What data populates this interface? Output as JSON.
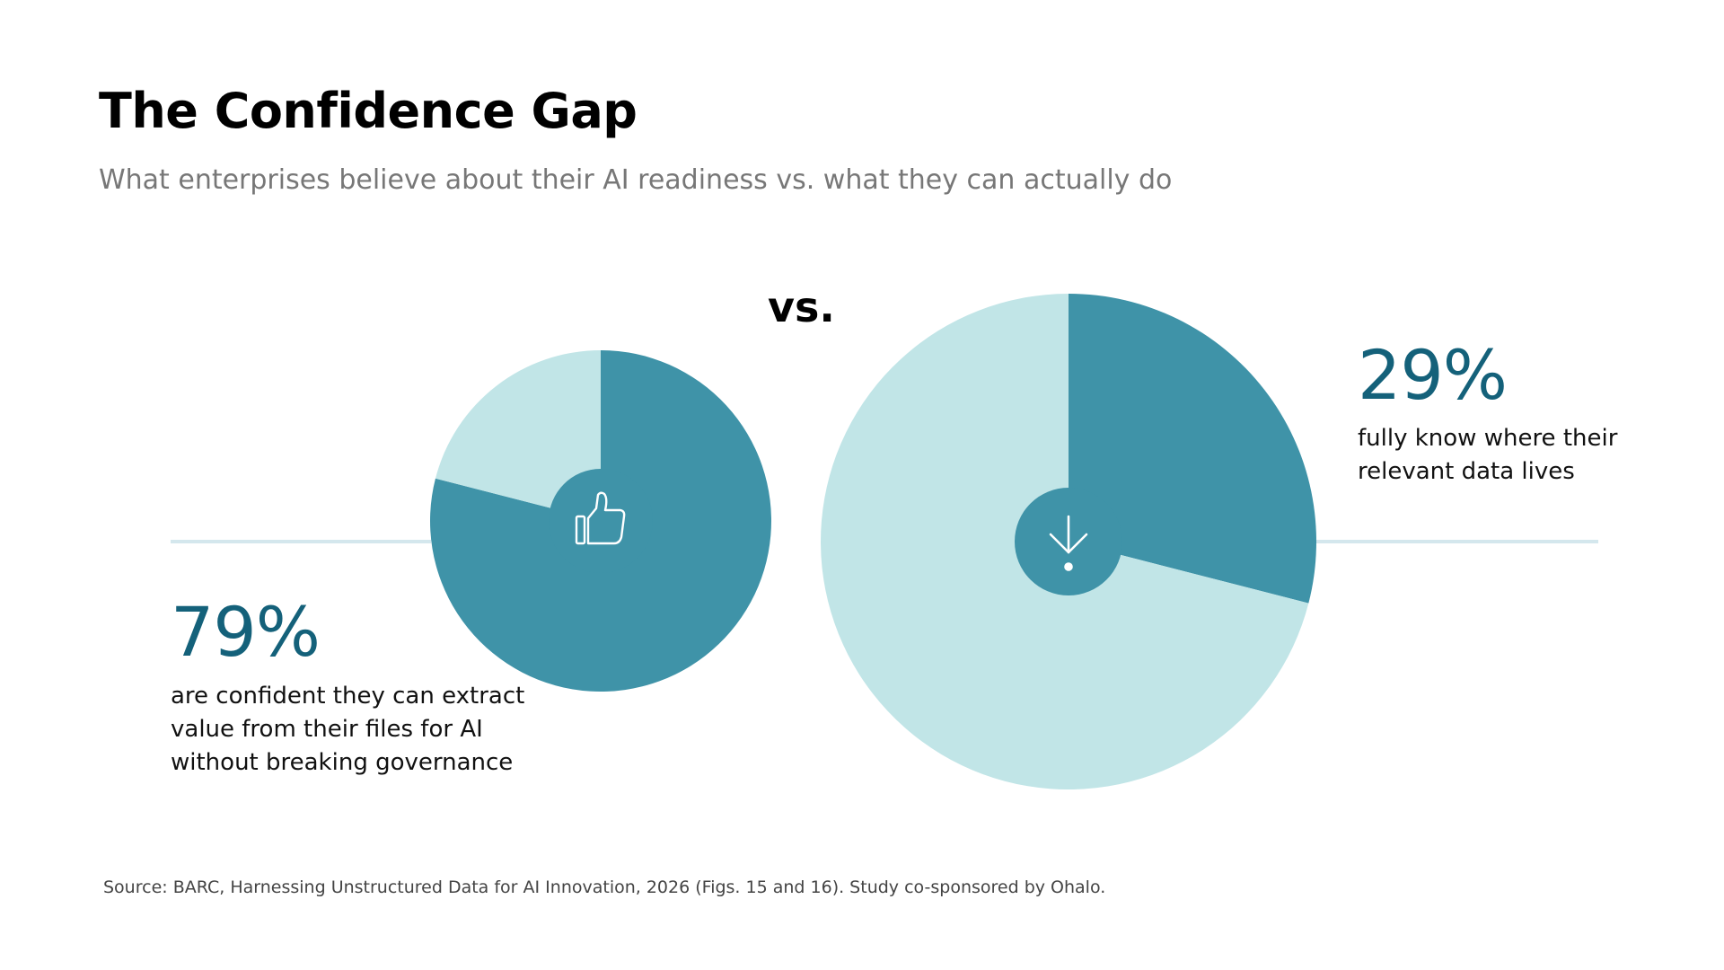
{
  "title": "The Confidence Gap",
  "subtitle": "What enterprises believe about their AI readiness vs. what they can actually do",
  "vs_label": "vs.",
  "source": "Source: BARC, Harnessing Unstructured Data for AI Innovation, 2026 (Figs. 15 and 16). Study co-sponsored by Ohalo.",
  "colors": {
    "filled": "#3f93a8",
    "remainder": "#c1e5e7",
    "connector": "#d4e7ed",
    "percent_text": "#14617a"
  },
  "chart_data": [
    {
      "type": "pie",
      "label": "79%",
      "description": [
        "are confident they can extract",
        "value from their files for AI",
        "without breaking governance"
      ],
      "values": [
        79,
        21
      ],
      "icon": "thumbs-up-icon"
    },
    {
      "type": "pie",
      "label": "29%",
      "description": [
        "fully know where their",
        "relevant data lives"
      ],
      "values": [
        29,
        71
      ],
      "icon": "arrow-down-icon"
    }
  ]
}
